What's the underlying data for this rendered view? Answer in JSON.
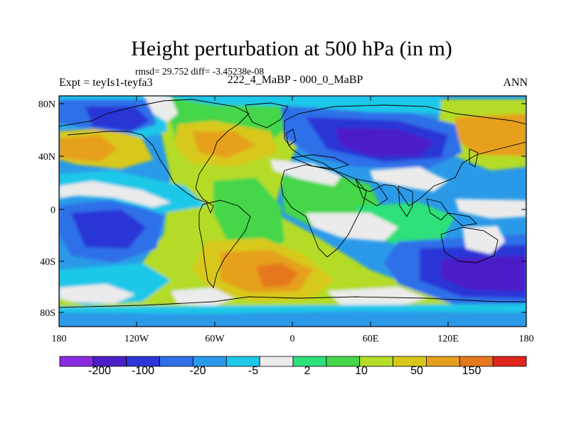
{
  "title": "Height perturbation at 500 hPa (in m)",
  "stats": "rmsd= 29.752 diff= -3.45238e-08",
  "left_label": "Expt = teyIs1-teyfa3",
  "center_label": "222_4_MaBP - 000_0_MaBP",
  "right_label": "ANN",
  "lat_ticks": [
    "80N",
    "40N",
    "0",
    "40S",
    "80S"
  ],
  "lon_ticks": [
    "180",
    "120W",
    "60W",
    "0",
    "60E",
    "120E",
    "180"
  ],
  "colorbar": {
    "colors": [
      "#8a2be2",
      "#4b1fc8",
      "#2a36d6",
      "#2f6fe8",
      "#2a9ae8",
      "#1ec8e8",
      "#ebebeb",
      "#2ee07a",
      "#45d64a",
      "#b4dc28",
      "#d8c81a",
      "#e6a01e",
      "#e6781e",
      "#e0241e"
    ],
    "labels": [
      "-200",
      "-100",
      "-20",
      "-5",
      "2",
      "10",
      "50",
      "150"
    ]
  },
  "palette": {
    "deep_purple": "#8a2be2",
    "dark_blue": "#4b1fc8",
    "blue": "#2a36d6",
    "mid_blue": "#2f6fe8",
    "sky": "#2a9ae8",
    "cyan": "#1ec8e8",
    "white": "#ebebeb",
    "teal_green": "#2ee07a",
    "green": "#45d64a",
    "yellow_green": "#b4dc28",
    "yellow": "#d8c81a",
    "orange": "#e6a01e",
    "dark_orange": "#e6781e",
    "red": "#e0241e"
  }
}
